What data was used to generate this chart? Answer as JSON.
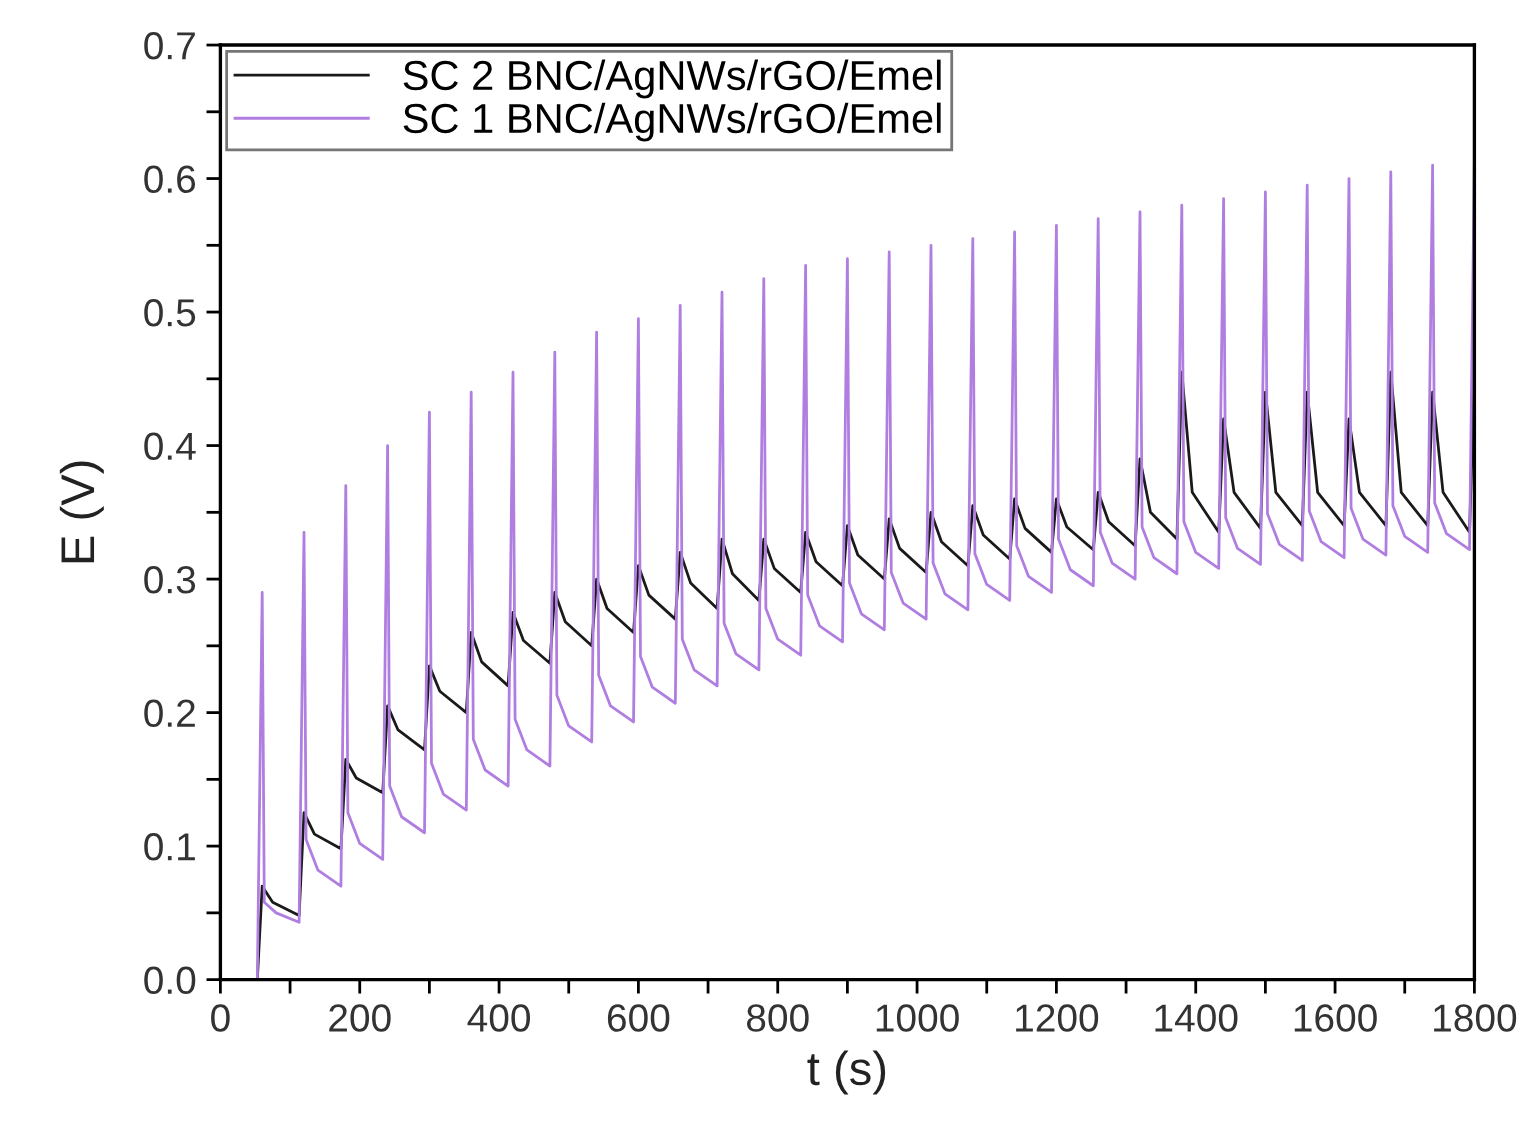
{
  "chart_data": {
    "type": "line",
    "xlabel": "t (s)",
    "ylabel": "E (V)",
    "xlim": [
      0,
      1800
    ],
    "ylim": [
      0,
      0.7
    ],
    "xticks": [
      0,
      {
        "value": 100,
        "label": null
      },
      200,
      {
        "value": 300,
        "label": null
      },
      400,
      {
        "value": 500,
        "label": null
      },
      600,
      {
        "value": 700,
        "label": null
      },
      800,
      {
        "value": 900,
        "label": null
      },
      1000,
      {
        "value": 1100,
        "label": null
      },
      1200,
      {
        "value": 1300,
        "label": null
      },
      1400,
      {
        "value": 1500,
        "label": null
      },
      1600,
      {
        "value": 1700,
        "label": null
      },
      1800
    ],
    "yticks": [
      {
        "value": 0,
        "label": "0.0"
      },
      {
        "value": 0.05,
        "label": null
      },
      0.1,
      {
        "value": 0.15,
        "label": null
      },
      0.2,
      {
        "value": 0.25,
        "label": null
      },
      0.3,
      {
        "value": 0.35,
        "label": null
      },
      0.4,
      {
        "value": 0.45,
        "label": null
      },
      0.5,
      {
        "value": 0.55,
        "label": null
      },
      0.6,
      {
        "value": 0.65,
        "label": null
      },
      0.7
    ],
    "grid": false,
    "legend": "top left",
    "marker": "none",
    "line_style": "solid",
    "series": [
      {
        "name": "SC 2 BNC/AgNWs/rGO/Emel",
        "color": "#1a1a1a",
        "x": [
          0,
          53,
          60,
          75,
          113,
          120,
          135,
          173,
          180,
          195,
          233,
          240,
          255,
          293,
          300,
          315,
          353,
          360,
          375,
          413,
          420,
          435,
          473,
          480,
          495,
          533,
          540,
          555,
          593,
          600,
          615,
          653,
          660,
          675,
          713,
          720,
          735,
          773,
          780,
          795,
          833,
          840,
          855,
          893,
          900,
          915,
          953,
          960,
          975,
          1013,
          1020,
          1035,
          1073,
          1080,
          1095,
          1133,
          1140,
          1155,
          1193,
          1200,
          1215,
          1253,
          1260,
          1275,
          1313,
          1320,
          1335,
          1373,
          1380,
          1395,
          1433,
          1440,
          1455,
          1493,
          1500,
          1515,
          1553,
          1560,
          1575,
          1613,
          1620,
          1635,
          1673,
          1680,
          1695,
          1733,
          1740,
          1755,
          1793,
          1800
        ],
        "values": [
          0,
          0,
          0.07,
          0.058,
          0.048,
          0.125,
          0.109,
          0.098,
          0.165,
          0.151,
          0.14,
          0.205,
          0.187,
          0.172,
          0.235,
          0.216,
          0.2,
          0.26,
          0.238,
          0.22,
          0.275,
          0.254,
          0.237,
          0.29,
          0.268,
          0.25,
          0.3,
          0.278,
          0.26,
          0.31,
          0.288,
          0.27,
          0.32,
          0.297,
          0.278,
          0.33,
          0.304,
          0.284,
          0.33,
          0.308,
          0.29,
          0.335,
          0.313,
          0.295,
          0.34,
          0.318,
          0.3,
          0.345,
          0.323,
          0.305,
          0.35,
          0.328,
          0.31,
          0.355,
          0.333,
          0.315,
          0.36,
          0.338,
          0.32,
          0.36,
          0.339,
          0.322,
          0.365,
          0.343,
          0.325,
          0.39,
          0.35,
          0.33,
          0.455,
          0.365,
          0.335,
          0.42,
          0.365,
          0.338,
          0.44,
          0.365,
          0.34,
          0.44,
          0.365,
          0.34,
          0.42,
          0.365,
          0.34,
          0.455,
          0.365,
          0.34,
          0.44,
          0.365,
          0.335,
          0.455
        ]
      },
      {
        "name": "SC 1 BNC/AgNWs/rGO/Emel",
        "color": "#b07ee0",
        "x": [
          0,
          53,
          60,
          63,
          80,
          113,
          120,
          123,
          140,
          173,
          180,
          183,
          200,
          233,
          240,
          243,
          260,
          293,
          300,
          303,
          320,
          353,
          360,
          363,
          380,
          413,
          420,
          423,
          440,
          473,
          480,
          483,
          500,
          533,
          540,
          543,
          560,
          593,
          600,
          603,
          620,
          653,
          660,
          663,
          680,
          713,
          720,
          723,
          740,
          773,
          780,
          783,
          800,
          833,
          840,
          843,
          860,
          893,
          900,
          903,
          920,
          953,
          960,
          963,
          980,
          1013,
          1020,
          1023,
          1040,
          1073,
          1080,
          1083,
          1100,
          1133,
          1140,
          1143,
          1160,
          1193,
          1200,
          1203,
          1220,
          1253,
          1260,
          1263,
          1280,
          1313,
          1320,
          1323,
          1340,
          1373,
          1380,
          1383,
          1400,
          1433,
          1440,
          1443,
          1460,
          1493,
          1500,
          1503,
          1520,
          1553,
          1560,
          1563,
          1580,
          1613,
          1620,
          1623,
          1640,
          1673,
          1680,
          1683,
          1700,
          1733,
          1740,
          1743,
          1760,
          1793,
          1800
        ],
        "values": [
          0,
          0,
          0.29,
          0.058,
          0.05,
          0.043,
          0.335,
          0.105,
          0.082,
          0.07,
          0.37,
          0.125,
          0.102,
          0.09,
          0.4,
          0.145,
          0.122,
          0.11,
          0.425,
          0.162,
          0.139,
          0.127,
          0.44,
          0.18,
          0.157,
          0.145,
          0.455,
          0.195,
          0.172,
          0.16,
          0.47,
          0.213,
          0.19,
          0.178,
          0.485,
          0.228,
          0.205,
          0.193,
          0.495,
          0.242,
          0.219,
          0.207,
          0.505,
          0.255,
          0.232,
          0.22,
          0.515,
          0.267,
          0.244,
          0.232,
          0.525,
          0.278,
          0.255,
          0.243,
          0.535,
          0.288,
          0.265,
          0.253,
          0.54,
          0.297,
          0.274,
          0.262,
          0.545,
          0.305,
          0.282,
          0.27,
          0.55,
          0.312,
          0.289,
          0.277,
          0.555,
          0.319,
          0.296,
          0.284,
          0.56,
          0.325,
          0.302,
          0.29,
          0.565,
          0.33,
          0.307,
          0.295,
          0.57,
          0.335,
          0.312,
          0.3,
          0.575,
          0.339,
          0.316,
          0.304,
          0.58,
          0.343,
          0.32,
          0.308,
          0.585,
          0.346,
          0.323,
          0.311,
          0.59,
          0.349,
          0.326,
          0.314,
          0.595,
          0.351,
          0.328,
          0.316,
          0.6,
          0.353,
          0.33,
          0.318,
          0.605,
          0.355,
          0.332,
          0.32,
          0.61,
          0.357,
          0.334,
          0.322,
          0.615
        ]
      }
    ]
  }
}
